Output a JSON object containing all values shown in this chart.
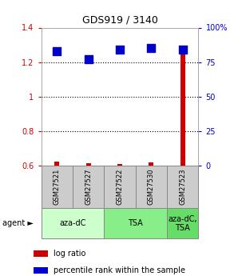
{
  "title": "GDS919 / 3140",
  "samples": [
    "GSM27521",
    "GSM27527",
    "GSM27522",
    "GSM27530",
    "GSM27523"
  ],
  "log_ratio": [
    0.625,
    0.615,
    0.61,
    0.618,
    1.285
  ],
  "percentile_rank": [
    83,
    77,
    84,
    85,
    84
  ],
  "ylim_left": [
    0.6,
    1.4
  ],
  "ylim_right": [
    0,
    100
  ],
  "yticks_left": [
    0.6,
    0.8,
    1.0,
    1.2,
    1.4
  ],
  "yticks_right": [
    0,
    25,
    50,
    75,
    100
  ],
  "ytick_labels_left": [
    "0.6",
    "0.8",
    "1",
    "1.2",
    "1.4"
  ],
  "ytick_labels_right": [
    "0",
    "25",
    "50",
    "75",
    "100%"
  ],
  "bar_color": "#cc0000",
  "dot_color": "#0000cc",
  "agent_groups": [
    {
      "label": "aza-dC",
      "start": 0,
      "end": 1,
      "color": "#ccffcc"
    },
    {
      "label": "TSA",
      "start": 2,
      "end": 3,
      "color": "#88ee88"
    },
    {
      "label": "aza-dC,\nTSA",
      "start": 4,
      "end": 4,
      "color": "#66dd66"
    }
  ],
  "sample_box_color": "#cccccc",
  "sample_box_edge": "#888888",
  "dotted_line_color": "#000000",
  "left_tick_color": "#cc0000",
  "right_tick_color": "#0000cc"
}
